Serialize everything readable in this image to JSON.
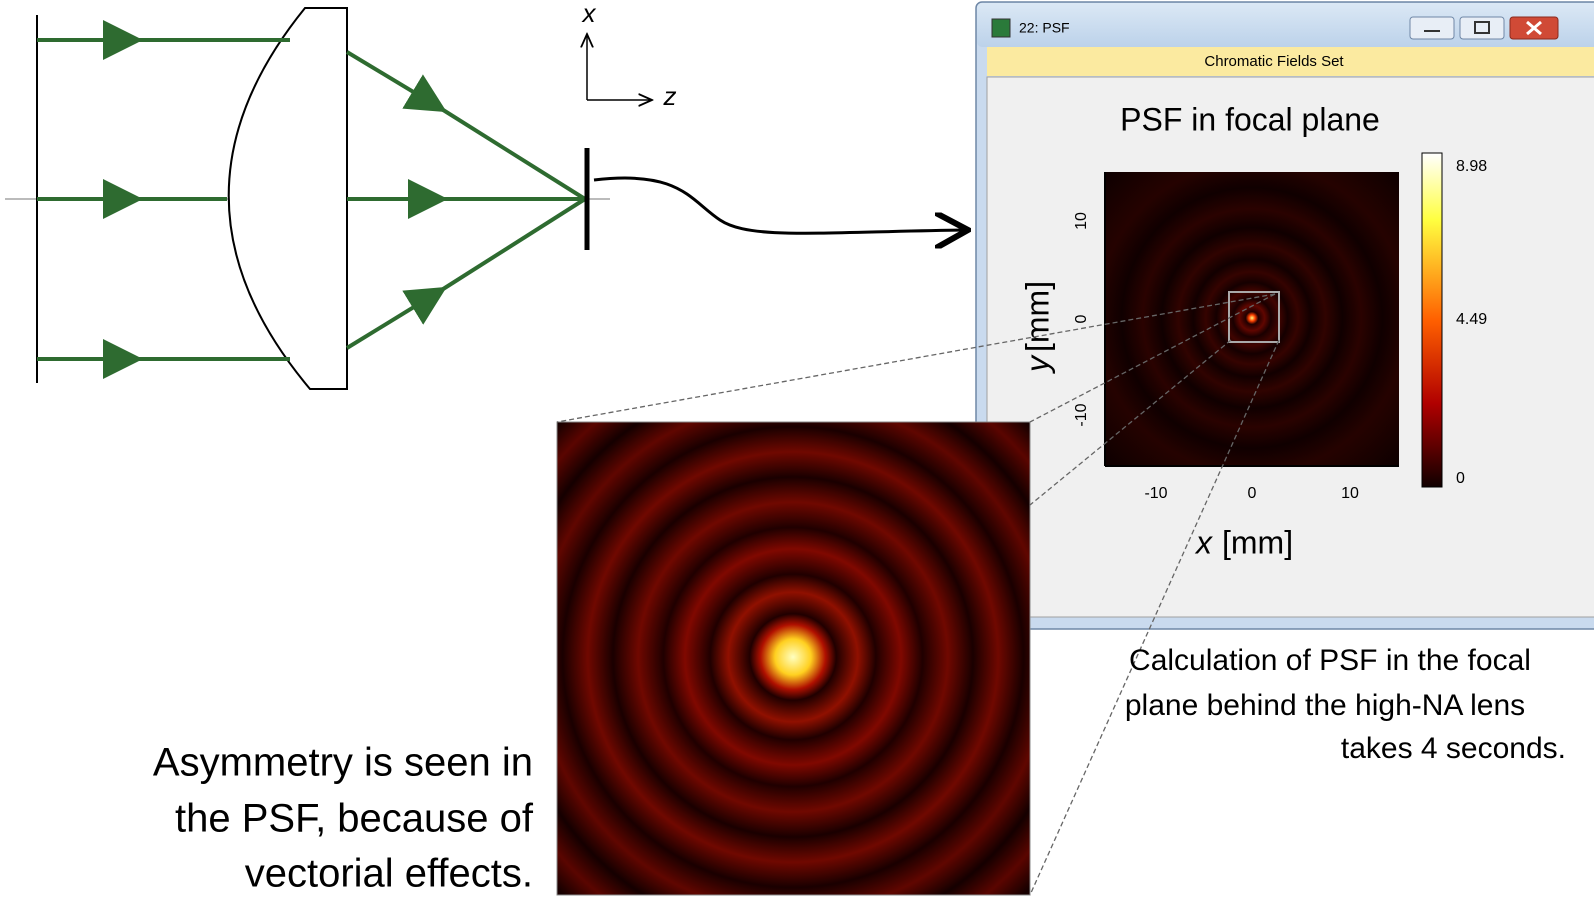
{
  "axes_label": {
    "x": "x",
    "z": "z"
  },
  "window": {
    "title": "22: PSF",
    "toolbar": "Chromatic Fields Set",
    "plot": {
      "title": "PSF in focal plane",
      "xticks": [
        -10,
        0,
        10
      ],
      "yticks": [
        10,
        0,
        -10
      ],
      "x_label": {
        "var": "x",
        "unit": "[mm]"
      },
      "y_label": {
        "var": "y",
        "unit": "[mm]"
      },
      "colorbar_ticks": [
        8.98,
        4.49,
        0
      ]
    }
  },
  "caption": [
    "Calculation of PSF in the focal",
    "plane behind the high-NA lens",
    "takes 4 seconds."
  ],
  "note": [
    "Asymmetry is seen in",
    "the PSF, because of",
    "vectorial effects."
  ]
}
